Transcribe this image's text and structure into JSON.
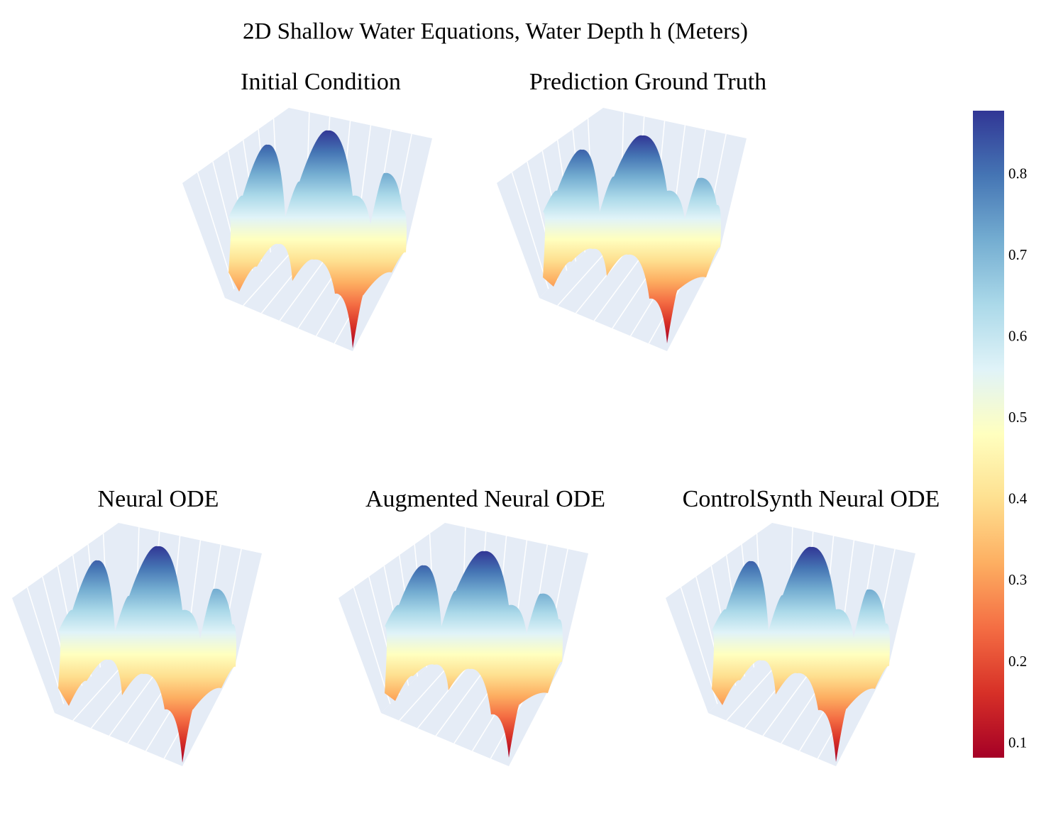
{
  "chart_data": {
    "type": "surface",
    "title": "2D Shallow Water Equations, Water Depth h (Meters)",
    "subplots": [
      {
        "title": "Initial Condition"
      },
      {
        "title": "Prediction Ground Truth"
      },
      {
        "title": "Neural ODE"
      },
      {
        "title": "Augmented Neural ODE"
      },
      {
        "title": "ControlSynth Neural ODE"
      }
    ],
    "colorbar": {
      "lim": [
        0.083,
        0.879
      ],
      "ticks": [
        0.1,
        0.2,
        0.3,
        0.4,
        0.5,
        0.6,
        0.7,
        0.8
      ],
      "colorscale": [
        "#a50026",
        "#d73027",
        "#f46d43",
        "#fdae61",
        "#fee090",
        "#ffffbf",
        "#e0f3f8",
        "#abd9e9",
        "#74add1",
        "#4575b4",
        "#313695"
      ]
    }
  }
}
